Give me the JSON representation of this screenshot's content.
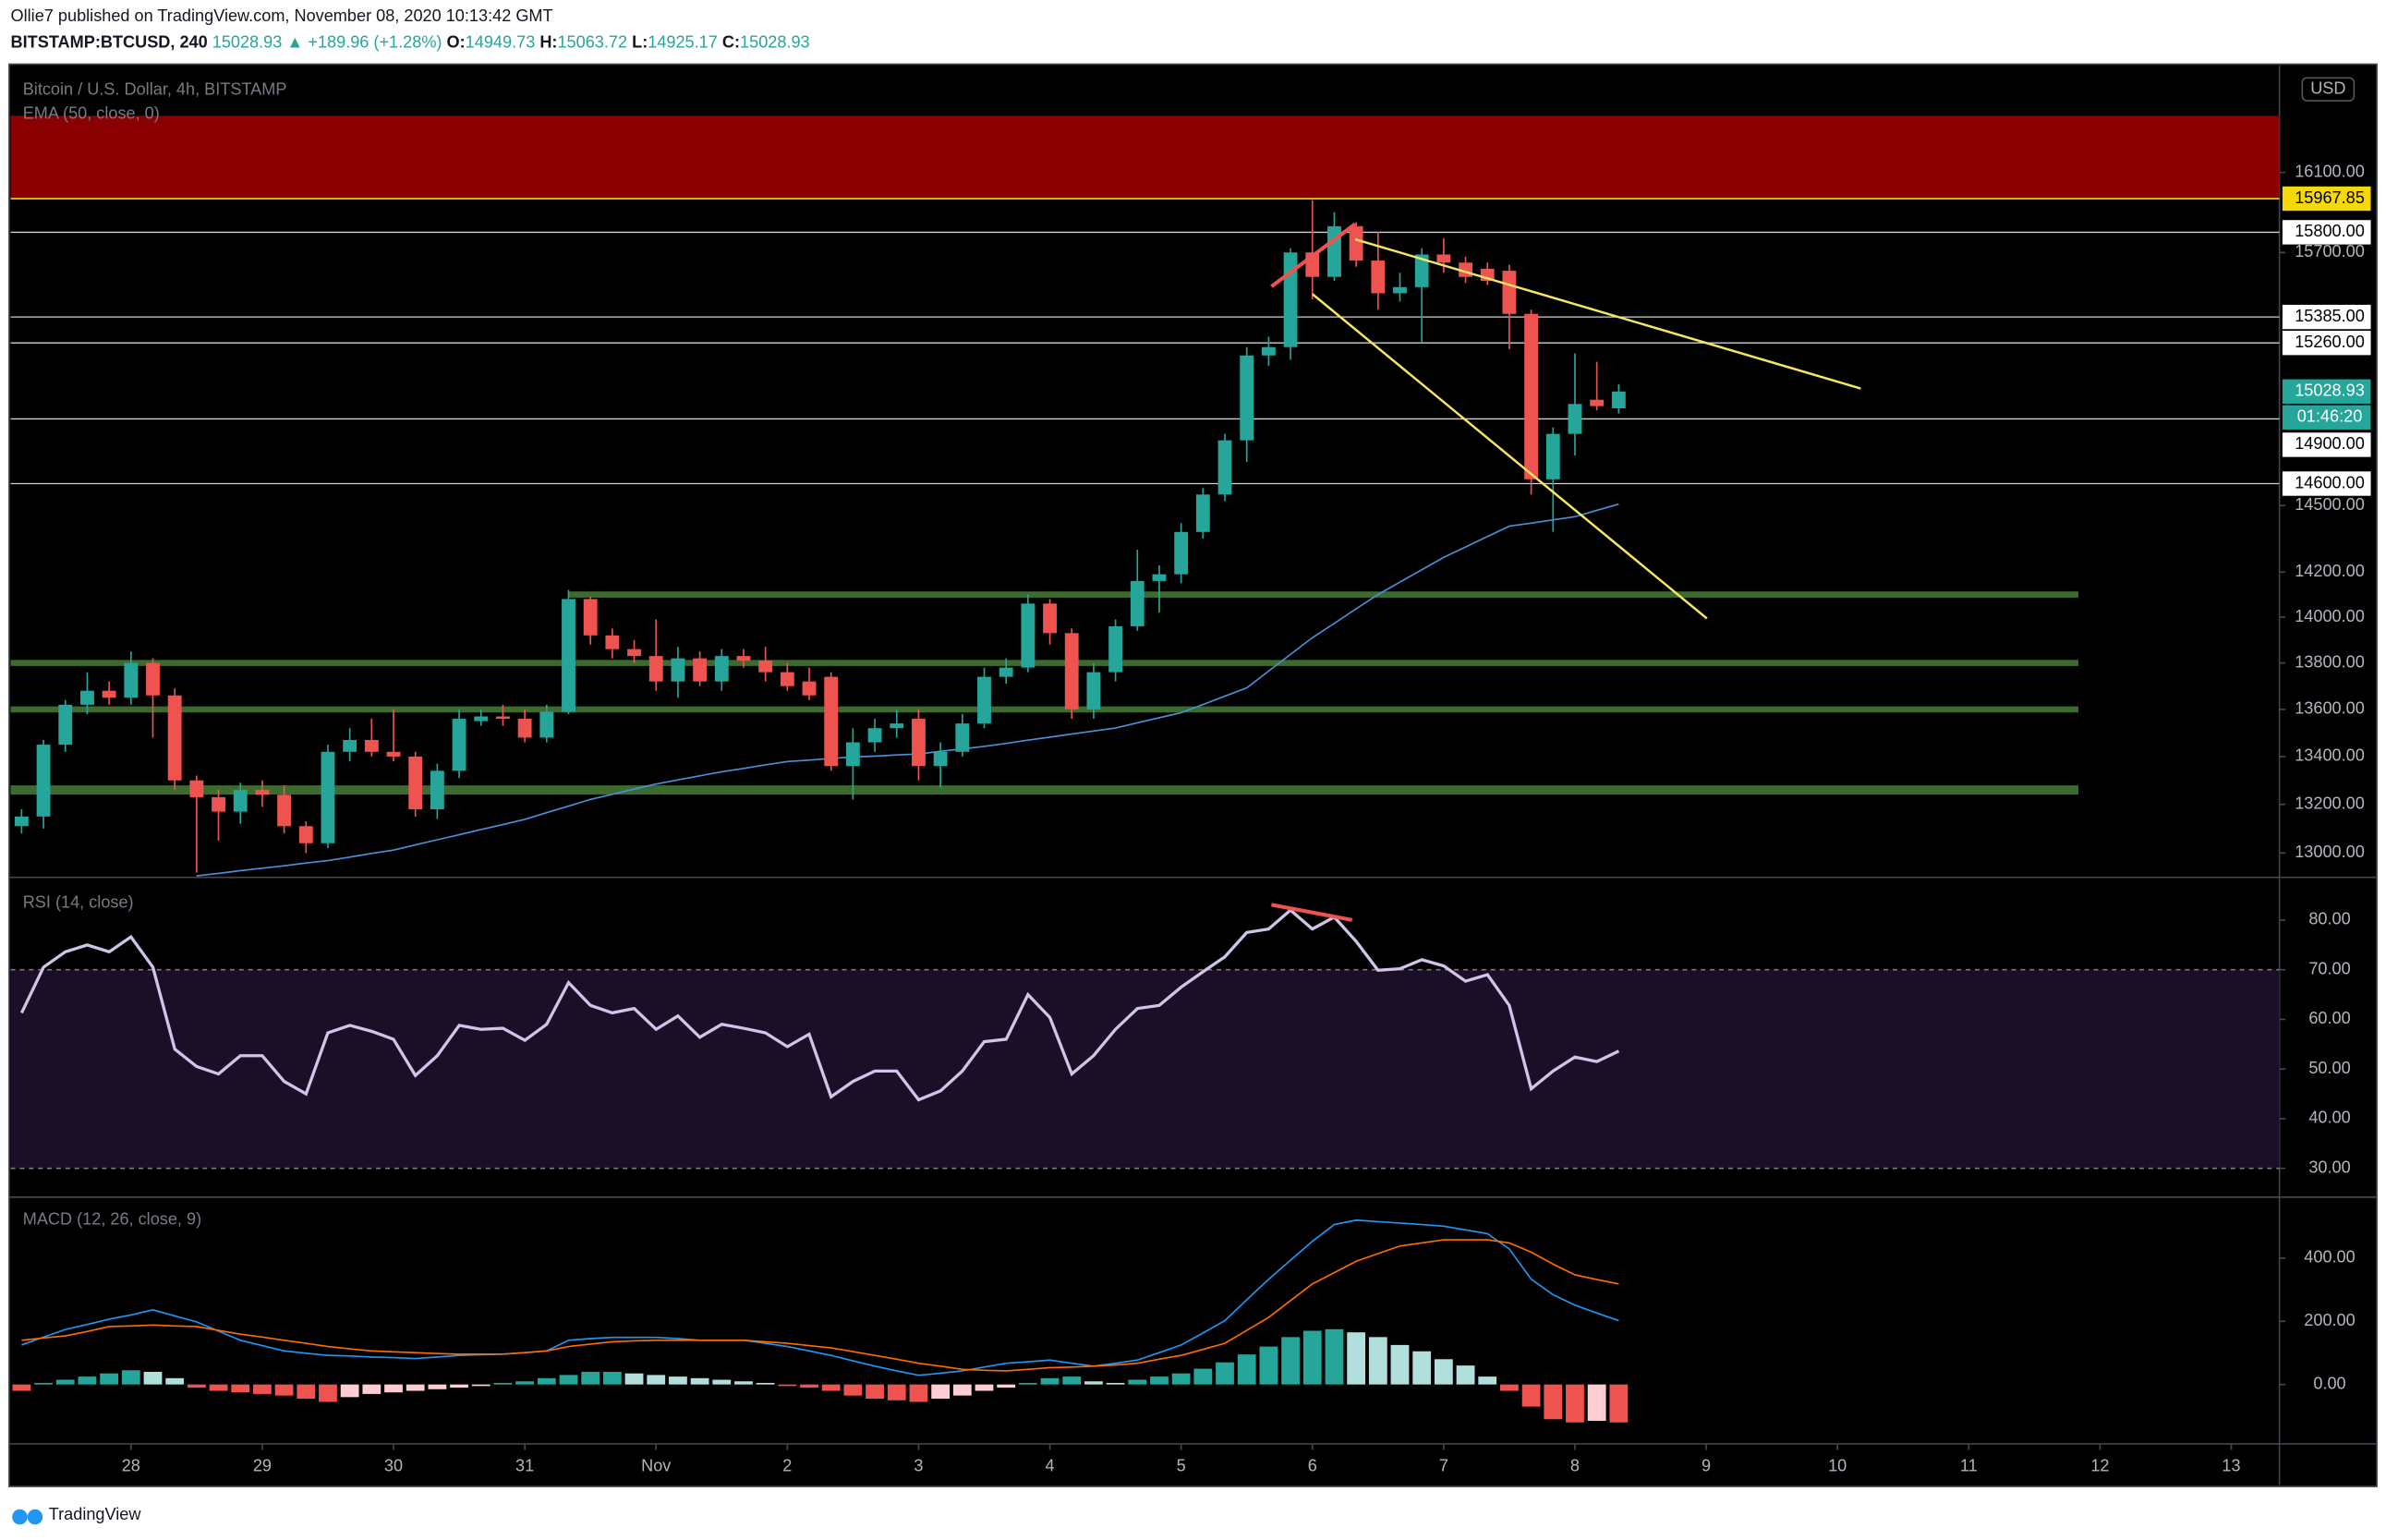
{
  "header": {
    "byline": "Ollie7 published on TradingView.com, November 08, 2020 10:13:42 GMT",
    "symbol": "BITSTAMP:BTCUSD, 240",
    "change": "▲ +189.96 (+1.28%)",
    "open_label": "O:",
    "high_label": "H:",
    "low_label": "L:",
    "close_label": "C:"
  },
  "footer": "TradingView",
  "chart_data": [
    {
      "type": "candlestick",
      "title": "Bitcoin / U.S. Dollar, 4h, BITSTAMP",
      "currency": "USD",
      "log_scale": true,
      "grid": false,
      "ylim": [
        12907,
        16649
      ],
      "yticks": [
        {
          "value": 13000,
          "label": "13000.00"
        },
        {
          "value": 13200,
          "label": "13200.00"
        },
        {
          "value": 13400,
          "label": "13400.00"
        },
        {
          "value": 13600,
          "label": "13600.00"
        },
        {
          "value": 13800,
          "label": "13800.00"
        },
        {
          "value": 14000,
          "label": "14000.00"
        },
        {
          "value": 14200,
          "label": "14200.00"
        },
        {
          "value": 14500,
          "label": "14500.00"
        },
        {
          "value": 15700,
          "label": "15700.00"
        },
        {
          "value": 16100,
          "label": "16100.00"
        }
      ],
      "xlim": [
        -0.5,
        103.2
      ],
      "xticks": [
        {
          "value": 5,
          "label": "28"
        },
        {
          "value": 11,
          "label": "29"
        },
        {
          "value": 17,
          "label": "30"
        },
        {
          "value": 23,
          "label": "31"
        },
        {
          "value": 29,
          "label": "Nov"
        },
        {
          "value": 35,
          "label": "2"
        },
        {
          "value": 41,
          "label": "3"
        },
        {
          "value": 47,
          "label": "4"
        },
        {
          "value": 53,
          "label": "5"
        },
        {
          "value": 59,
          "label": "6"
        },
        {
          "value": 65,
          "label": "7"
        },
        {
          "value": 71,
          "label": "8"
        },
        {
          "value": 77,
          "label": "9"
        },
        {
          "value": 83,
          "label": "10"
        },
        {
          "value": 89,
          "label": "11"
        },
        {
          "value": 95,
          "label": "12"
        },
        {
          "value": 101,
          "label": "13"
        }
      ],
      "up_color": "#26a69a",
      "down_color": "#ef5350",
      "candles": {
        "open": [
          13110,
          13150,
          13450,
          13620,
          13680,
          13650,
          13800,
          13660,
          13300,
          13230,
          13170,
          13260,
          13240,
          13110,
          13040,
          13420,
          13470,
          13420,
          13400,
          13180,
          13340,
          13550,
          13570,
          13560,
          13480,
          13590,
          14080,
          13920,
          13860,
          13830,
          13720,
          13820,
          13720,
          13830,
          13810,
          13760,
          13720,
          13740,
          13360,
          13460,
          13520,
          13560,
          13360,
          13420,
          13540,
          13740,
          13780,
          14060,
          13930,
          13600,
          13760,
          13960,
          14160,
          14190,
          14380,
          14550,
          14800,
          15200,
          15240,
          15700,
          15580,
          15830,
          15660,
          15500,
          15530,
          15690,
          15650,
          15620,
          15610,
          15400,
          14620,
          14830,
          14990,
          14949.73
        ],
        "high": [
          13180,
          13470,
          13640,
          13760,
          13720,
          13850,
          13820,
          13690,
          13320,
          13260,
          13290,
          13300,
          13280,
          13130,
          13450,
          13520,
          13560,
          13600,
          13420,
          13370,
          13600,
          13600,
          13620,
          13600,
          13620,
          14120,
          14090,
          13950,
          13900,
          13990,
          13870,
          13850,
          13860,
          13860,
          13870,
          13800,
          13780,
          13760,
          13520,
          13560,
          13600,
          13600,
          13460,
          13580,
          13780,
          13820,
          14100,
          14080,
          13950,
          13800,
          13990,
          14300,
          14230,
          14420,
          14580,
          14830,
          15240,
          15290,
          15720,
          15960,
          15900,
          15850,
          15800,
          15600,
          15720,
          15770,
          15680,
          15650,
          15640,
          15420,
          14860,
          15210,
          15170,
          15063.72
        ],
        "low": [
          13080,
          13100,
          13420,
          13580,
          13620,
          13620,
          13480,
          13260,
          12920,
          13050,
          13120,
          13190,
          13080,
          13000,
          13020,
          13380,
          13400,
          13380,
          13150,
          13140,
          13310,
          13530,
          13530,
          13460,
          13460,
          13580,
          13880,
          13820,
          13800,
          13680,
          13650,
          13700,
          13680,
          13780,
          13720,
          13680,
          13640,
          13340,
          13220,
          13420,
          13480,
          13300,
          13270,
          13400,
          13520,
          13710,
          13760,
          13880,
          13560,
          13560,
          13720,
          13940,
          14020,
          14150,
          14350,
          14520,
          14700,
          15150,
          15180,
          15470,
          15560,
          15630,
          15420,
          15460,
          15260,
          15600,
          15550,
          15540,
          15230,
          14550,
          14380,
          14730,
          14940,
          14925.17
        ],
        "close": [
          13150,
          13450,
          13620,
          13680,
          13650,
          13800,
          13660,
          13300,
          13230,
          13170,
          13260,
          13240,
          13110,
          13040,
          13420,
          13470,
          13420,
          13400,
          13180,
          13340,
          13560,
          13570,
          13560,
          13480,
          13590,
          14080,
          13920,
          13860,
          13830,
          13720,
          13820,
          13720,
          13830,
          13810,
          13760,
          13700,
          13660,
          13360,
          13460,
          13520,
          13540,
          13360,
          13420,
          13540,
          13740,
          13780,
          14060,
          13930,
          13600,
          13760,
          13960,
          14160,
          14190,
          14380,
          14550,
          14800,
          15200,
          15240,
          15700,
          15580,
          15830,
          15660,
          15500,
          15530,
          15690,
          15650,
          15580,
          15560,
          15400,
          14620,
          14830,
          14970,
          14960,
          15028.93
        ]
      },
      "series": [
        {
          "name": "EMA (50, close, 0)",
          "color": "#4a90d9",
          "values": [
            null,
            null,
            null,
            null,
            null,
            null,
            null,
            null,
            12907,
            12917,
            12928,
            12938,
            12948,
            12959,
            12969,
            12983,
            12998,
            13012,
            13033,
            13054,
            13075,
            13096,
            13117,
            13138,
            13166,
            13193,
            13221,
            13242,
            13264,
            13285,
            13302,
            13319,
            13336,
            13350,
            13365,
            13379,
            13385,
            13392,
            13398,
            13402,
            13407,
            13411,
            13422,
            13432,
            13443,
            13456,
            13469,
            13482,
            13495,
            13508,
            13521,
            13543,
            13564,
            13586,
            13621,
            13657,
            13692,
            13765,
            13837,
            13910,
            13973,
            14037,
            14100,
            14155,
            14210,
            14265,
            14312,
            14359,
            14406,
            14420,
            14435,
            14449,
            14478,
            14506
          ]
        }
      ],
      "levels": [
        {
          "value": 15800,
          "label": "15800.00"
        },
        {
          "value": 15385,
          "label": "15385.00"
        },
        {
          "value": 15260,
          "label": "15260.00"
        },
        {
          "value": 14900,
          "label": "14900.00"
        },
        {
          "value": 14600,
          "label": "14600.00"
        }
      ],
      "resistance_line": 15967.85,
      "resistance_line_color": "#f5d90a",
      "zone_top": 16389,
      "zone_color": "#8b0000",
      "supports": [
        14100,
        13800,
        13600,
        13260
      ],
      "support_color": "#3d6b2f",
      "countdown": "01:46:20"
    },
    {
      "type": "line",
      "title": "RSI (14, close)",
      "color": "#d1c4e9",
      "ylim": [
        24.5,
        88.3
      ],
      "yticks": [
        {
          "value": 30,
          "label": "30.00"
        },
        {
          "value": 40,
          "label": "40.00"
        },
        {
          "value": 50,
          "label": "50.00"
        },
        {
          "value": 60,
          "label": "60.00"
        },
        {
          "value": 70,
          "label": "70.00"
        },
        {
          "value": 80,
          "label": "80.00"
        }
      ],
      "band": [
        30,
        70
      ],
      "band_color": "#1a0f26",
      "values": [
        61.3,
        70.5,
        73.6,
        75,
        73.6,
        76.6,
        70.5,
        54,
        50.5,
        49,
        52.7,
        52.7,
        47.5,
        45,
        57.3,
        58.8,
        57.6,
        56,
        48.7,
        52.7,
        58.8,
        58,
        58.2,
        55.8,
        59,
        67.4,
        62.8,
        61.3,
        62.2,
        58,
        60.7,
        56.4,
        59,
        58.2,
        57.3,
        54.5,
        57,
        44.4,
        47.5,
        49.6,
        49.6,
        43.8,
        45.6,
        49.6,
        55.5,
        56,
        65,
        60.4,
        49,
        52.7,
        58,
        62.2,
        62.8,
        66.5,
        69.6,
        72.6,
        77.5,
        78.2,
        82,
        78.2,
        80.6,
        75.7,
        69.9,
        70.2,
        72,
        70.8,
        67.7,
        69,
        62.8,
        46,
        49.6,
        52.4,
        51.5,
        53.6
      ]
    },
    {
      "type": "macd",
      "title": "MACD (12, 26, close, 9)",
      "ylim": [
        -183,
        588
      ],
      "yticks": [
        {
          "value": 0,
          "label": "0.00"
        },
        {
          "value": 200,
          "label": "200.00"
        },
        {
          "value": 400,
          "label": "400.00"
        }
      ],
      "series": [
        {
          "color": "#2196f3",
          "values": [
            125,
            150,
            174,
            190,
            207,
            220,
            236,
            217,
            198,
            169,
            140,
            123,
            106,
            99,
            92,
            90,
            87,
            85,
            82,
            87,
            92,
            94,
            96,
            101,
            106,
            140,
            145,
            149,
            149,
            149,
            145,
            140,
            140,
            140,
            130,
            120,
            106,
            92,
            75,
            58,
            43,
            29,
            36,
            43,
            55,
            67,
            72,
            77,
            67,
            58,
            67,
            77,
            101,
            125,
            163,
            202,
            268,
            333,
            393,
            453,
            506,
            520,
            515,
            511,
            506,
            501,
            489,
            477,
            429,
            333,
            284,
            251,
            226,
            202
          ]
        },
        {
          "color": "#ff6d00",
          "values": [
            140,
            147,
            154,
            168,
            183,
            185,
            188,
            185,
            183,
            171,
            159,
            150,
            140,
            130,
            120,
            113,
            106,
            103,
            101,
            98,
            96,
            96,
            96,
            101,
            106,
            120,
            128,
            135,
            138,
            140,
            140,
            140,
            140,
            140,
            135,
            130,
            123,
            116,
            104,
            92,
            80,
            67,
            58,
            48,
            45,
            43,
            48,
            53,
            55,
            58,
            62,
            67,
            80,
            92,
            111,
            130,
            171,
            212,
            265,
            318,
            354,
            390,
            414,
            438,
            448,
            458,
            458,
            458,
            448,
            419,
            381,
            347,
            332,
            318
          ]
        }
      ],
      "histogram": [
        -20,
        5,
        15,
        25,
        35,
        45,
        40,
        20,
        -10,
        -20,
        -25,
        -30,
        -35,
        -45,
        -55,
        -40,
        -30,
        -25,
        -20,
        -15,
        -10,
        -5,
        5,
        10,
        20,
        30,
        40,
        40,
        35,
        30,
        25,
        20,
        15,
        10,
        5,
        -5,
        -10,
        -20,
        -35,
        -45,
        -50,
        -55,
        -45,
        -35,
        -20,
        -10,
        5,
        20,
        25,
        10,
        5,
        15,
        25,
        35,
        50,
        70,
        95,
        120,
        150,
        170,
        175,
        165,
        150,
        125,
        105,
        80,
        60,
        25,
        -20,
        -70,
        -110,
        -120,
        -115,
        -120
      ],
      "histogram_colors": [
        "#26a69a",
        "#b2dfdb",
        "#ffcdd2",
        "#ef5350"
      ]
    }
  ]
}
